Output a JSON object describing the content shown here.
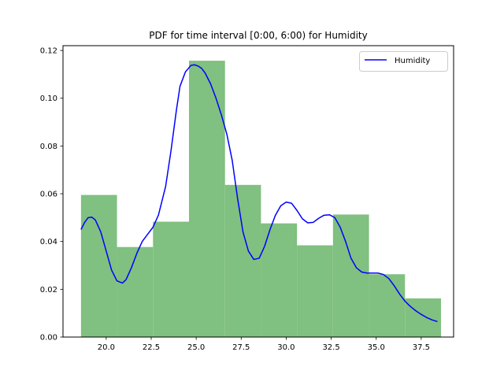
{
  "chart_data": {
    "type": "bar",
    "title": "PDF for time interval [0:00, 6:00) for Humidity",
    "xlabel": "",
    "ylabel": "",
    "xlim": [
      17.6,
      39.3
    ],
    "ylim": [
      0,
      0.122
    ],
    "xticks": [
      20.0,
      22.5,
      25.0,
      27.5,
      30.0,
      32.5,
      35.0,
      37.5
    ],
    "xtick_labels": [
      "20.0",
      "22.5",
      "25.0",
      "27.5",
      "30.0",
      "32.5",
      "35.0",
      "37.5"
    ],
    "yticks": [
      0.0,
      0.02,
      0.04,
      0.06,
      0.08,
      0.1,
      0.12
    ],
    "ytick_labels": [
      "0.00",
      "0.02",
      "0.04",
      "0.06",
      "0.08",
      "0.10",
      "0.12"
    ],
    "grid": false,
    "legend_position": "top-right",
    "histogram": {
      "color": "#80c080",
      "bins": [
        {
          "x0": 18.6,
          "x1": 20.6,
          "value": 0.0595
        },
        {
          "x0": 20.6,
          "x1": 22.6,
          "value": 0.0377
        },
        {
          "x0": 22.6,
          "x1": 24.6,
          "value": 0.0483
        },
        {
          "x0": 24.6,
          "x1": 26.6,
          "value": 0.1157
        },
        {
          "x0": 26.6,
          "x1": 28.6,
          "value": 0.0637
        },
        {
          "x0": 28.6,
          "x1": 30.6,
          "value": 0.0476
        },
        {
          "x0": 30.6,
          "x1": 32.6,
          "value": 0.0384
        },
        {
          "x0": 32.6,
          "x1": 34.6,
          "value": 0.0513
        },
        {
          "x0": 34.6,
          "x1": 36.6,
          "value": 0.0263
        },
        {
          "x0": 36.6,
          "x1": 38.6,
          "value": 0.0162
        }
      ]
    },
    "series": [
      {
        "name": "Humidity",
        "type": "line",
        "color": "#0000ff",
        "x": [
          18.6,
          18.8,
          19.0,
          19.2,
          19.4,
          19.7,
          20.0,
          20.3,
          20.6,
          20.9,
          21.1,
          21.4,
          21.7,
          22.0,
          22.3,
          22.6,
          22.9,
          23.3,
          23.6,
          23.9,
          24.1,
          24.4,
          24.7,
          24.9,
          25.1,
          25.3,
          25.5,
          25.8,
          26.1,
          26.4,
          26.7,
          27.0,
          27.3,
          27.6,
          27.9,
          28.2,
          28.5,
          28.8,
          29.1,
          29.4,
          29.7,
          30.0,
          30.3,
          30.6,
          30.9,
          31.2,
          31.5,
          31.8,
          32.1,
          32.4,
          32.7,
          33.0,
          33.3,
          33.6,
          33.9,
          34.2,
          34.5,
          34.8,
          35.1,
          35.4,
          35.7,
          36.0,
          36.3,
          36.6,
          36.9,
          37.2,
          37.5,
          37.8,
          38.1,
          38.4
        ],
        "y": [
          0.045,
          0.048,
          0.05,
          0.0502,
          0.049,
          0.044,
          0.036,
          0.028,
          0.0235,
          0.0226,
          0.024,
          0.029,
          0.035,
          0.04,
          0.043,
          0.046,
          0.051,
          0.063,
          0.078,
          0.095,
          0.105,
          0.111,
          0.1137,
          0.114,
          0.1135,
          0.1125,
          0.1105,
          0.106,
          0.1,
          0.093,
          0.085,
          0.074,
          0.058,
          0.044,
          0.036,
          0.0325,
          0.033,
          0.038,
          0.045,
          0.051,
          0.055,
          0.0565,
          0.056,
          0.053,
          0.0495,
          0.0478,
          0.048,
          0.0497,
          0.051,
          0.0512,
          0.05,
          0.046,
          0.04,
          0.033,
          0.029,
          0.0272,
          0.0268,
          0.0268,
          0.0268,
          0.0262,
          0.0245,
          0.0215,
          0.018,
          0.015,
          0.0128,
          0.011,
          0.0095,
          0.0082,
          0.0072,
          0.0065
        ]
      }
    ]
  }
}
